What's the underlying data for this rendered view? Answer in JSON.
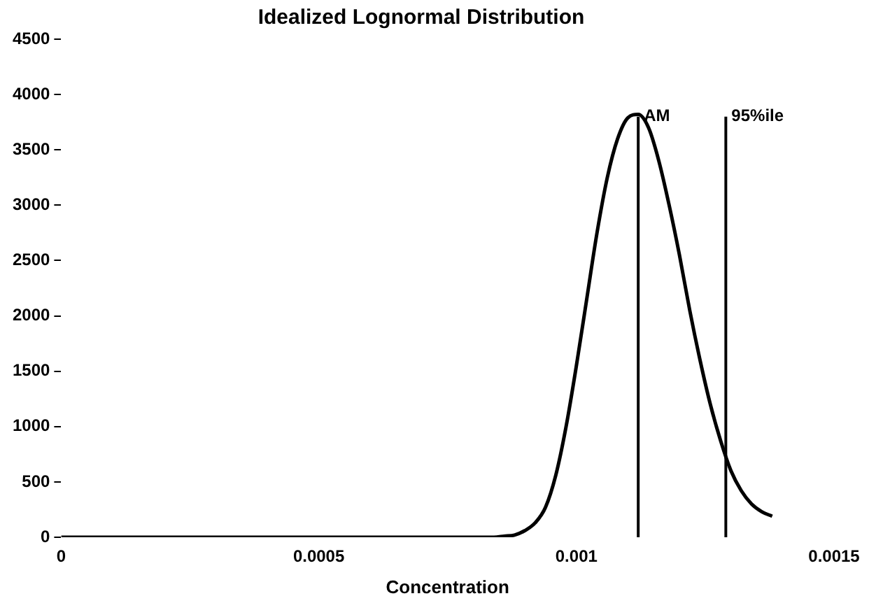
{
  "chart_data": {
    "type": "line",
    "title": "Idealized Lognormal Distribution",
    "xlabel": "Concentration",
    "series": [
      {
        "color": "#000000",
        "x": [
          0,
          0.0005,
          0.00084,
          0.00086,
          0.00088,
          0.0009,
          0.00092,
          0.00094,
          0.00096,
          0.00098,
          0.001,
          0.00102,
          0.00104,
          0.00106,
          0.00108,
          0.0011,
          0.00112,
          0.00114,
          0.00116,
          0.00118,
          0.0012,
          0.00122,
          0.00124,
          0.00126,
          0.00128,
          0.0013,
          0.00132,
          0.00134,
          0.00136,
          0.00138
        ],
        "values": [
          0,
          0,
          0,
          10,
          20,
          60,
          130,
          270,
          560,
          1000,
          1550,
          2150,
          2750,
          3250,
          3600,
          3790,
          3820,
          3700,
          3400,
          3000,
          2550,
          2050,
          1600,
          1200,
          870,
          600,
          420,
          300,
          230,
          190
        ]
      }
    ],
    "xlim": [
      0,
      0.0015
    ],
    "xticks": [
      0,
      0.0005,
      0.001,
      0.0015
    ],
    "ylim": [
      0,
      4500
    ],
    "yticks": [
      0,
      500,
      1000,
      1500,
      2000,
      2500,
      3000,
      3500,
      4000,
      4500
    ],
    "ref_lines": [
      {
        "axis": "x",
        "value": 0.00112,
        "label": "AM",
        "color": "#000000"
      },
      {
        "axis": "x",
        "value": 0.00129,
        "label": "95%ile",
        "color": "#000000"
      }
    ],
    "grid": false,
    "legend": false,
    "marker": "none",
    "line_style": "solid"
  }
}
